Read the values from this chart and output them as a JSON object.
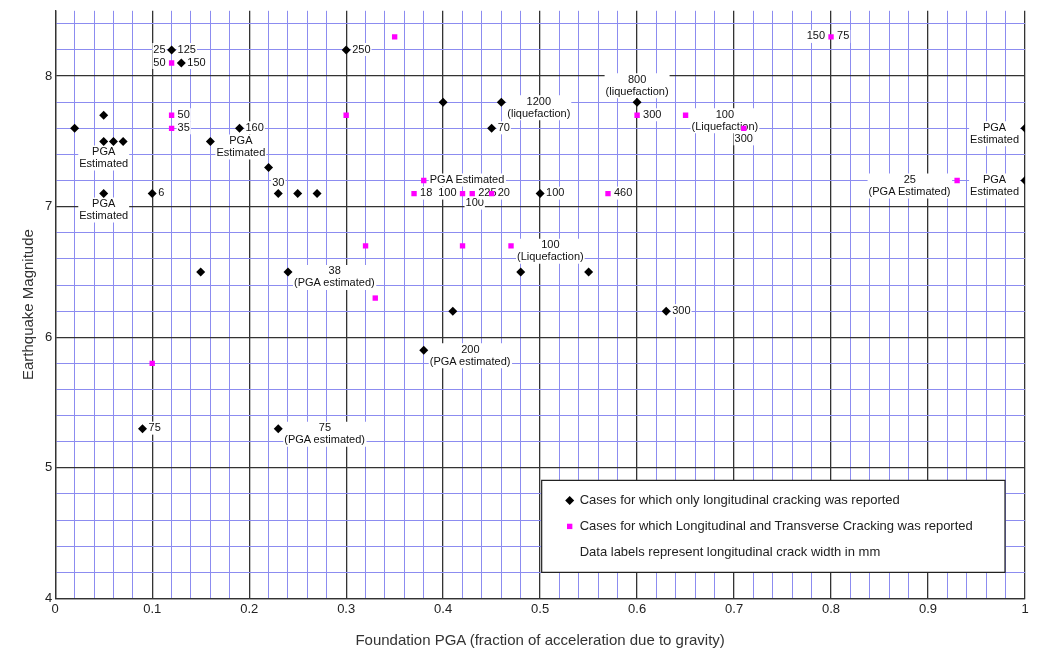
{
  "chart_data": {
    "type": "scatter",
    "xlabel": "Foundation PGA (fraction of acceleration due to gravity)",
    "ylabel": "Earthquake Magnitude",
    "xlim": [
      0,
      1
    ],
    "ylim": [
      4,
      8.5
    ],
    "xticks": [
      0,
      {
        "value": 0.02,
        "label": null
      },
      {
        "value": 0.04,
        "label": null
      },
      {
        "value": 0.06,
        "label": null
      },
      {
        "value": 0.08,
        "label": null
      },
      0.1,
      {
        "value": 0.12,
        "label": null
      },
      {
        "value": 0.14,
        "label": null
      },
      {
        "value": 0.16,
        "label": null
      },
      {
        "value": 0.18,
        "label": null
      },
      0.2,
      {
        "value": 0.22,
        "label": null
      },
      {
        "value": 0.24,
        "label": null
      },
      {
        "value": 0.26,
        "label": null
      },
      {
        "value": 0.28,
        "label": null
      },
      0.3,
      {
        "value": 0.32,
        "label": null
      },
      {
        "value": 0.34,
        "label": null
      },
      {
        "value": 0.36,
        "label": null
      },
      {
        "value": 0.38,
        "label": null
      },
      0.4,
      {
        "value": 0.42,
        "label": null
      },
      {
        "value": 0.44,
        "label": null
      },
      {
        "value": 0.46,
        "label": null
      },
      {
        "value": 0.48,
        "label": null
      },
      0.5,
      {
        "value": 0.52,
        "label": null
      },
      {
        "value": 0.54,
        "label": null
      },
      {
        "value": 0.56,
        "label": null
      },
      {
        "value": 0.58,
        "label": null
      },
      0.6,
      {
        "value": 0.62,
        "label": null
      },
      {
        "value": 0.64,
        "label": null
      },
      {
        "value": 0.66,
        "label": null
      },
      {
        "value": 0.68,
        "label": null
      },
      0.7,
      {
        "value": 0.72,
        "label": null
      },
      {
        "value": 0.74,
        "label": null
      },
      {
        "value": 0.76,
        "label": null
      },
      {
        "value": 0.78,
        "label": null
      },
      0.8,
      {
        "value": 0.82,
        "label": null
      },
      {
        "value": 0.84,
        "label": null
      },
      {
        "value": 0.86,
        "label": null
      },
      {
        "value": 0.88,
        "label": null
      },
      0.9,
      {
        "value": 0.92,
        "label": null
      },
      {
        "value": 0.94,
        "label": null
      },
      {
        "value": 0.96,
        "label": null
      },
      {
        "value": 0.98,
        "label": null
      },
      1
    ],
    "yticks": [
      4,
      {
        "value": 4.2,
        "label": null
      },
      {
        "value": 4.4,
        "label": null
      },
      {
        "value": 4.6,
        "label": null
      },
      {
        "value": 4.8,
        "label": null
      },
      5,
      {
        "value": 5.2,
        "label": null
      },
      {
        "value": 5.4,
        "label": null
      },
      {
        "value": 5.6,
        "label": null
      },
      {
        "value": 5.8,
        "label": null
      },
      6,
      {
        "value": 6.2,
        "label": null
      },
      {
        "value": 6.4,
        "label": null
      },
      {
        "value": 6.6,
        "label": null
      },
      {
        "value": 6.8,
        "label": null
      },
      7,
      {
        "value": 7.2,
        "label": null
      },
      {
        "value": 7.4,
        "label": null
      },
      {
        "value": 7.6,
        "label": null
      },
      {
        "value": 7.8,
        "label": null
      },
      8,
      {
        "value": 8.2,
        "label": null
      },
      {
        "value": 8.4,
        "label": null
      }
    ],
    "grid": true,
    "legend": "bottom right",
    "annotations": [
      "Data labels represent longitudinal crack width in mm",
      {
        "text": "PGA\nEstimated",
        "x": 0.05,
        "y": 7.5
      },
      {
        "text": "PGA\nEstimated",
        "x": 0.05,
        "y": 7.1
      },
      {
        "text": "6",
        "x": 0.1,
        "y": 7.1
      },
      {
        "text": "125",
        "x": 0.12,
        "y": 8.2
      },
      {
        "text": "25",
        "x": 0.12,
        "y": 8.2
      },
      {
        "text": "150",
        "x": 0.13,
        "y": 8.1
      },
      {
        "text": "PGA\nEstimated",
        "x": 0.16,
        "y": 7.5
      },
      {
        "text": "160",
        "x": 0.19,
        "y": 7.6
      },
      {
        "text": "30",
        "x": 0.23,
        "y": 7.1
      },
      {
        "text": "250",
        "x": 0.3,
        "y": 8.2
      },
      {
        "text": "38\n(PGA estimated)",
        "x": 0.24,
        "y": 6.5
      },
      {
        "text": "75",
        "x": 0.09,
        "y": 5.3
      },
      {
        "text": "75\n(PGA estimated)",
        "x": 0.23,
        "y": 5.3
      },
      {
        "text": "200\n(PGA estimated)",
        "x": 0.38,
        "y": 5.9
      },
      {
        "text": "300",
        "x": 0.63,
        "y": 6.2
      },
      {
        "text": "1200\n(liquefaction)",
        "x": 0.46,
        "y": 7.8
      },
      {
        "text": "70",
        "x": 0.45,
        "y": 7.6
      },
      {
        "text": "100",
        "x": 0.5,
        "y": 7.1
      },
      {
        "text": "800\n(liquefaction)",
        "x": 0.6,
        "y": 7.8
      },
      {
        "text": "PGA\nEstimated",
        "x": 1.0,
        "y": 7.6
      },
      {
        "text": "PGA\nEstimated",
        "x": 1.0,
        "y": 7.2
      },
      {
        "text": "50",
        "x": 0.12,
        "y": 8.1
      },
      {
        "text": "50",
        "x": 0.12,
        "y": 7.7
      },
      {
        "text": "35",
        "x": 0.12,
        "y": 7.6
      },
      {
        "text": "PGA Estimated",
        "x": 0.38,
        "y": 7.2
      },
      {
        "text": "18",
        "x": 0.37,
        "y": 7.1
      },
      {
        "text": "100",
        "x": 0.42,
        "y": 7.1
      },
      {
        "text": "100",
        "x": 0.42,
        "y": 7.1
      },
      {
        "text": "225",
        "x": 0.43,
        "y": 7.1
      },
      {
        "text": "20",
        "x": 0.45,
        "y": 7.1
      },
      {
        "text": "100\n(Liquefaction)",
        "x": 0.47,
        "y": 6.7
      },
      {
        "text": "460",
        "x": 0.57,
        "y": 7.1
      },
      {
        "text": "300",
        "x": 0.6,
        "y": 7.7
      },
      {
        "text": "100\n(Liquefaction)",
        "x": 0.65,
        "y": 7.7
      },
      {
        "text": "300",
        "x": 0.71,
        "y": 7.6
      },
      {
        "text": "75",
        "x": 0.8,
        "y": 8.3
      },
      {
        "text": "150",
        "x": 0.8,
        "y": 8.3
      },
      {
        "text": "25\n(PGA Estimated)",
        "x": 0.93,
        "y": 7.2
      }
    ],
    "series": [
      {
        "name": "Cases for which only longitudinal cracking was reported",
        "color": "#000000",
        "marker": "diamond",
        "x": [
          0.02,
          0.05,
          0.05,
          0.06,
          0.07,
          0.05,
          0.1,
          0.12,
          0.13,
          0.16,
          0.19,
          0.22,
          0.23,
          0.25,
          0.27,
          0.3,
          0.15,
          0.24,
          0.09,
          0.23,
          0.38,
          0.41,
          0.48,
          0.55,
          0.63,
          0.4,
          0.46,
          0.45,
          0.5,
          0.6,
          1.0,
          1.0
        ],
        "values": [
          7.6,
          7.7,
          7.5,
          7.5,
          7.5,
          7.1,
          7.1,
          8.2,
          8.1,
          7.5,
          7.6,
          7.3,
          7.1,
          7.1,
          7.1,
          8.2,
          6.5,
          6.5,
          5.3,
          5.3,
          5.9,
          6.2,
          6.5,
          6.5,
          6.2,
          7.8,
          7.8,
          7.6,
          7.1,
          7.8,
          7.6,
          7.2
        ]
      },
      {
        "name": "Cases for which Longitudinal and Transverse Cracking was reported",
        "color": "#ff00ff",
        "marker": "square",
        "x": [
          0.12,
          0.12,
          0.12,
          0.3,
          0.35,
          0.38,
          0.37,
          0.42,
          0.43,
          0.45,
          0.32,
          0.42,
          0.47,
          0.33,
          0.1,
          0.57,
          0.6,
          0.65,
          0.71,
          0.8,
          0.93
        ],
        "values": [
          8.1,
          7.7,
          7.6,
          7.7,
          8.3,
          7.2,
          7.1,
          7.1,
          7.1,
          7.1,
          6.7,
          6.7,
          6.7,
          6.3,
          5.8,
          7.1,
          7.7,
          7.7,
          7.6,
          8.3,
          7.2
        ]
      }
    ]
  }
}
